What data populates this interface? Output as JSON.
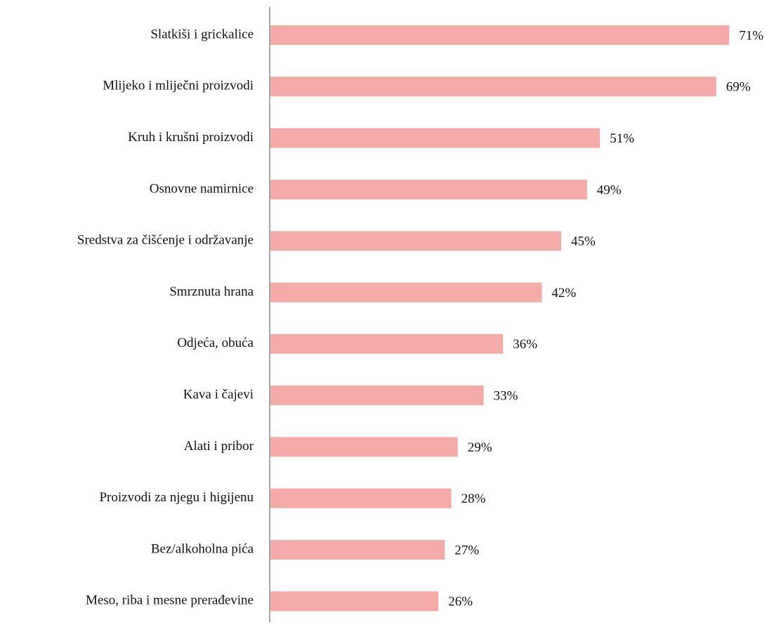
{
  "chart_data": {
    "type": "bar",
    "orientation": "horizontal",
    "categories": [
      "Slatkiši i grickalice",
      "Mlijeko i mliječni proizvodi",
      "Kruh i krušni proizvodi",
      "Osnovne namirnice",
      "Sredstva za čišćenje i održavanje",
      "Smrznuta hrana",
      "Odjeća, obuća",
      "Kava i čajevi",
      "Alati i pribor",
      "Proizvodi za njegu i higijenu",
      "Bez/alkoholna pića",
      "Meso, riba i mesne prerađevine"
    ],
    "values": [
      71,
      69,
      51,
      49,
      45,
      42,
      36,
      33,
      29,
      28,
      27,
      26
    ],
    "value_labels": [
      "71%",
      "69%",
      "51%",
      "49%",
      "45%",
      "42%",
      "36%",
      "33%",
      "29%",
      "28%",
      "27%",
      "26%"
    ],
    "color": "#f4aaa6",
    "xlim": [
      0,
      100
    ]
  }
}
